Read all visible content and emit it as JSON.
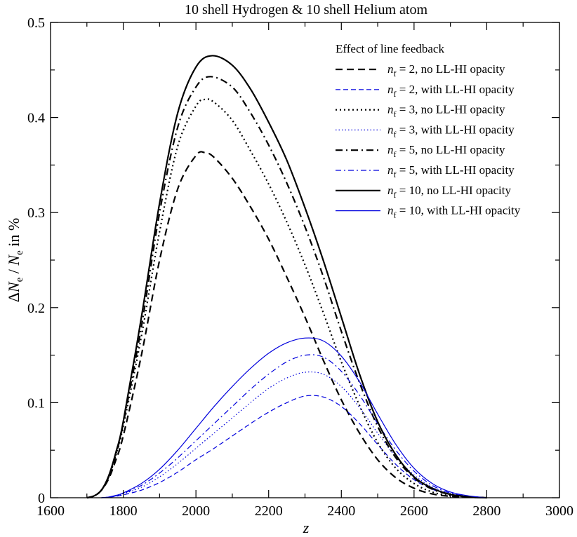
{
  "chart_data": {
    "type": "line",
    "title": "10 shell Hydrogen & 10 shell Helium atom",
    "xlabel": "z",
    "ylabel": {
      "delta": "Δ",
      "n": "N",
      "sub": "e",
      "slash": " / ",
      "n2": "N",
      "sub2": "e",
      "suffix": " in %"
    },
    "xlim": [
      1600,
      3000
    ],
    "ylim": [
      0,
      0.5
    ],
    "xticks": [
      1600,
      1800,
      2000,
      2200,
      2400,
      2600,
      2800,
      3000
    ],
    "xtick_labels": [
      "1600",
      "1800",
      "2000",
      "2200",
      "2400",
      "2600",
      "2800",
      "3000"
    ],
    "yticks": [
      0,
      0.1,
      0.2,
      0.3,
      0.4,
      0.5
    ],
    "ytick_labels": [
      "0",
      "0.1",
      "0.2",
      "0.3",
      "0.4",
      "0.5"
    ],
    "grid": false,
    "legend_title": "Effect of line feedback",
    "legend_position": "top-right",
    "series": [
      {
        "name": "n_f = 2, no LL-HI opacity",
        "legend": {
          "var": "n",
          "sub": "f",
          "text": " = 2, no LL-HI opacity"
        },
        "color": "#000000",
        "dash": "dashed",
        "weight": "thick",
        "x": [
          1700,
          1720,
          1740,
          1760,
          1780,
          1800,
          1850,
          1900,
          1950,
          2000,
          2025,
          2050,
          2100,
          2150,
          2200,
          2250,
          2300,
          2350,
          2400,
          2450,
          2500,
          2550,
          2600,
          2650,
          2700,
          2750,
          2800
        ],
        "y": [
          0.0,
          0.002,
          0.008,
          0.02,
          0.04,
          0.065,
          0.15,
          0.25,
          0.325,
          0.36,
          0.363,
          0.358,
          0.336,
          0.306,
          0.272,
          0.232,
          0.19,
          0.145,
          0.103,
          0.068,
          0.04,
          0.021,
          0.01,
          0.004,
          0.0015,
          0.0005,
          0.0
        ]
      },
      {
        "name": "n_f = 2, with LL-HI opacity",
        "legend": {
          "var": "n",
          "sub": "f",
          "text": " = 2, with LL-HI opacity"
        },
        "color": "#0000dd",
        "dash": "dashed",
        "weight": "thin",
        "x": [
          1740,
          1760,
          1780,
          1800,
          1850,
          1900,
          1950,
          2000,
          2050,
          2100,
          2150,
          2200,
          2250,
          2300,
          2350,
          2400,
          2450,
          2500,
          2550,
          2600,
          2650,
          2700,
          2750,
          2800
        ],
        "y": [
          0.0,
          0.0005,
          0.0015,
          0.003,
          0.008,
          0.016,
          0.027,
          0.04,
          0.052,
          0.065,
          0.078,
          0.09,
          0.1,
          0.107,
          0.106,
          0.096,
          0.078,
          0.056,
          0.035,
          0.019,
          0.009,
          0.0035,
          0.001,
          0.0
        ]
      },
      {
        "name": "n_f = 3, no LL-HI opacity",
        "legend": {
          "var": "n",
          "sub": "f",
          "text": " = 3, no LL-HI opacity"
        },
        "color": "#000000",
        "dash": "dotted",
        "weight": "thick",
        "x": [
          1700,
          1720,
          1740,
          1760,
          1780,
          1800,
          1850,
          1900,
          1950,
          2000,
          2025,
          2050,
          2100,
          2150,
          2200,
          2250,
          2300,
          2350,
          2400,
          2450,
          2500,
          2550,
          2600,
          2650,
          2700,
          2750,
          2800
        ],
        "y": [
          0.0,
          0.002,
          0.008,
          0.022,
          0.045,
          0.075,
          0.17,
          0.28,
          0.37,
          0.412,
          0.419,
          0.416,
          0.397,
          0.365,
          0.33,
          0.29,
          0.245,
          0.195,
          0.143,
          0.097,
          0.058,
          0.031,
          0.015,
          0.006,
          0.002,
          0.0007,
          0.0
        ]
      },
      {
        "name": "n_f = 3, with LL-HI opacity",
        "legend": {
          "var": "n",
          "sub": "f",
          "text": " = 3, with LL-HI opacity"
        },
        "color": "#0000dd",
        "dash": "dotted",
        "weight": "thin",
        "x": [
          1740,
          1760,
          1780,
          1800,
          1850,
          1900,
          1950,
          2000,
          2050,
          2100,
          2150,
          2200,
          2250,
          2300,
          2350,
          2400,
          2450,
          2500,
          2550,
          2600,
          2650,
          2700,
          2750,
          2800
        ],
        "y": [
          0.0,
          0.0006,
          0.002,
          0.004,
          0.011,
          0.022,
          0.036,
          0.052,
          0.068,
          0.084,
          0.1,
          0.115,
          0.126,
          0.132,
          0.13,
          0.117,
          0.095,
          0.068,
          0.043,
          0.024,
          0.011,
          0.0045,
          0.0015,
          0.0
        ]
      },
      {
        "name": "n_f = 5, no LL-HI opacity",
        "legend": {
          "var": "n",
          "sub": "f",
          "text": " = 5, no LL-HI opacity"
        },
        "color": "#000000",
        "dash": "dashdot",
        "weight": "thick",
        "x": [
          1700,
          1720,
          1740,
          1760,
          1780,
          1800,
          1850,
          1900,
          1950,
          2000,
          2040,
          2100,
          2150,
          2200,
          2250,
          2300,
          2350,
          2400,
          2450,
          2500,
          2550,
          2600,
          2650,
          2700,
          2750,
          2800
        ],
        "y": [
          0.0,
          0.002,
          0.008,
          0.022,
          0.046,
          0.078,
          0.18,
          0.3,
          0.39,
          0.432,
          0.443,
          0.432,
          0.405,
          0.371,
          0.331,
          0.285,
          0.233,
          0.175,
          0.121,
          0.075,
          0.042,
          0.021,
          0.009,
          0.0035,
          0.001,
          0.0
        ]
      },
      {
        "name": "n_f = 5, with LL-HI opacity",
        "legend": {
          "var": "n",
          "sub": "f",
          "text": " = 5, with LL-HI opacity"
        },
        "color": "#0000dd",
        "dash": "dashdot",
        "weight": "thin",
        "x": [
          1740,
          1760,
          1780,
          1800,
          1850,
          1900,
          1950,
          2000,
          2050,
          2100,
          2150,
          2200,
          2250,
          2300,
          2350,
          2400,
          2450,
          2500,
          2550,
          2600,
          2650,
          2700,
          2750,
          2800
        ],
        "y": [
          0.0,
          0.0007,
          0.002,
          0.0045,
          0.013,
          0.026,
          0.042,
          0.06,
          0.078,
          0.096,
          0.114,
          0.13,
          0.143,
          0.15,
          0.148,
          0.133,
          0.108,
          0.078,
          0.05,
          0.028,
          0.013,
          0.005,
          0.0015,
          0.0
        ]
      },
      {
        "name": "n_f = 10, no LL-HI opacity",
        "legend": {
          "var": "n",
          "sub": "f",
          "text": " = 10, no LL-HI opacity"
        },
        "color": "#000000",
        "dash": "solid",
        "weight": "thick",
        "x": [
          1700,
          1720,
          1740,
          1760,
          1780,
          1800,
          1850,
          1900,
          1950,
          2000,
          2045,
          2100,
          2150,
          2200,
          2250,
          2300,
          2350,
          2400,
          2450,
          2500,
          2550,
          2600,
          2650,
          2700,
          2750,
          2800
        ],
        "y": [
          0.0,
          0.002,
          0.008,
          0.023,
          0.048,
          0.08,
          0.19,
          0.31,
          0.405,
          0.453,
          0.465,
          0.455,
          0.43,
          0.395,
          0.355,
          0.305,
          0.25,
          0.19,
          0.13,
          0.08,
          0.045,
          0.022,
          0.01,
          0.0035,
          0.001,
          0.0
        ]
      },
      {
        "name": "n_f = 10, with LL-HI opacity",
        "legend": {
          "var": "n",
          "sub": "f",
          "text": " = 10, with LL-HI opacity"
        },
        "color": "#0000dd",
        "dash": "solid",
        "weight": "thin",
        "x": [
          1740,
          1760,
          1780,
          1800,
          1850,
          1900,
          1950,
          2000,
          2050,
          2100,
          2150,
          2200,
          2250,
          2300,
          2350,
          2400,
          2450,
          2500,
          2550,
          2600,
          2650,
          2700,
          2750,
          2800
        ],
        "y": [
          0.0,
          0.0008,
          0.0025,
          0.005,
          0.015,
          0.03,
          0.05,
          0.073,
          0.096,
          0.117,
          0.136,
          0.152,
          0.163,
          0.168,
          0.165,
          0.149,
          0.122,
          0.088,
          0.056,
          0.031,
          0.015,
          0.006,
          0.002,
          0.0
        ]
      }
    ]
  }
}
